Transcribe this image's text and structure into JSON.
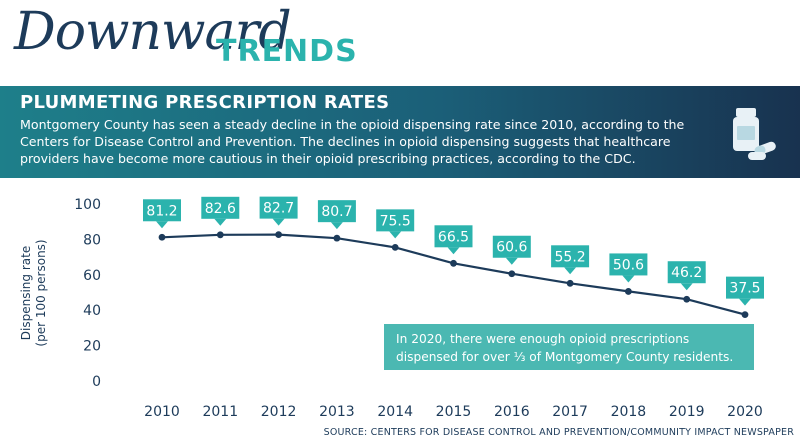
{
  "header": {
    "title_script": "Downward",
    "title_bold": "TRENDS",
    "subtitle": "PLUMMETING PRESCRIPTION RATES",
    "description": "Montgomery County has seen a steady decline in the opioid dispensing rate since 2010, according to the Centers for Disease Control and Prevention. The declines in opioid dispensing suggests that healthcare providers have become more cautious in their opioid prescribing practices, according to the CDC."
  },
  "icon": "pill-bottle-icon",
  "colors": {
    "line": "#1d3b5a",
    "label_box": "#2bb3ad",
    "annotation_box": "#4bb8b2",
    "text_dark": "#1d3b5a"
  },
  "chart_data": {
    "type": "line",
    "x": [
      "2010",
      "2011",
      "2012",
      "2013",
      "2014",
      "2015",
      "2016",
      "2017",
      "2018",
      "2019",
      "2020"
    ],
    "series": [
      {
        "values": [
          81.2,
          82.6,
          82.7,
          80.7,
          75.5,
          66.5,
          60.6,
          55.2,
          50.6,
          46.2,
          37.5
        ]
      }
    ],
    "data_labels": [
      "81.2",
      "82.6",
      "82.7",
      "80.7",
      "75.5",
      "66.5",
      "60.6",
      "55.2",
      "50.6",
      "46.2",
      "37.5"
    ],
    "yticks": [
      0,
      20,
      40,
      60,
      80,
      100
    ],
    "ylim": [
      0,
      100
    ],
    "ylabel_line1": "Dispensing rate",
    "ylabel_line2": "(per 100 persons)",
    "xlabel": "",
    "grid": false,
    "annotation": {
      "line1": "In 2020, there were enough opioid prescriptions",
      "line2": "dispensed for over ⅓ of Montgomery County residents."
    }
  },
  "source": "SOURCE: CENTERS FOR DISEASE CONTROL AND PREVENTION/COMMUNITY IMPACT NEWSPAPER"
}
